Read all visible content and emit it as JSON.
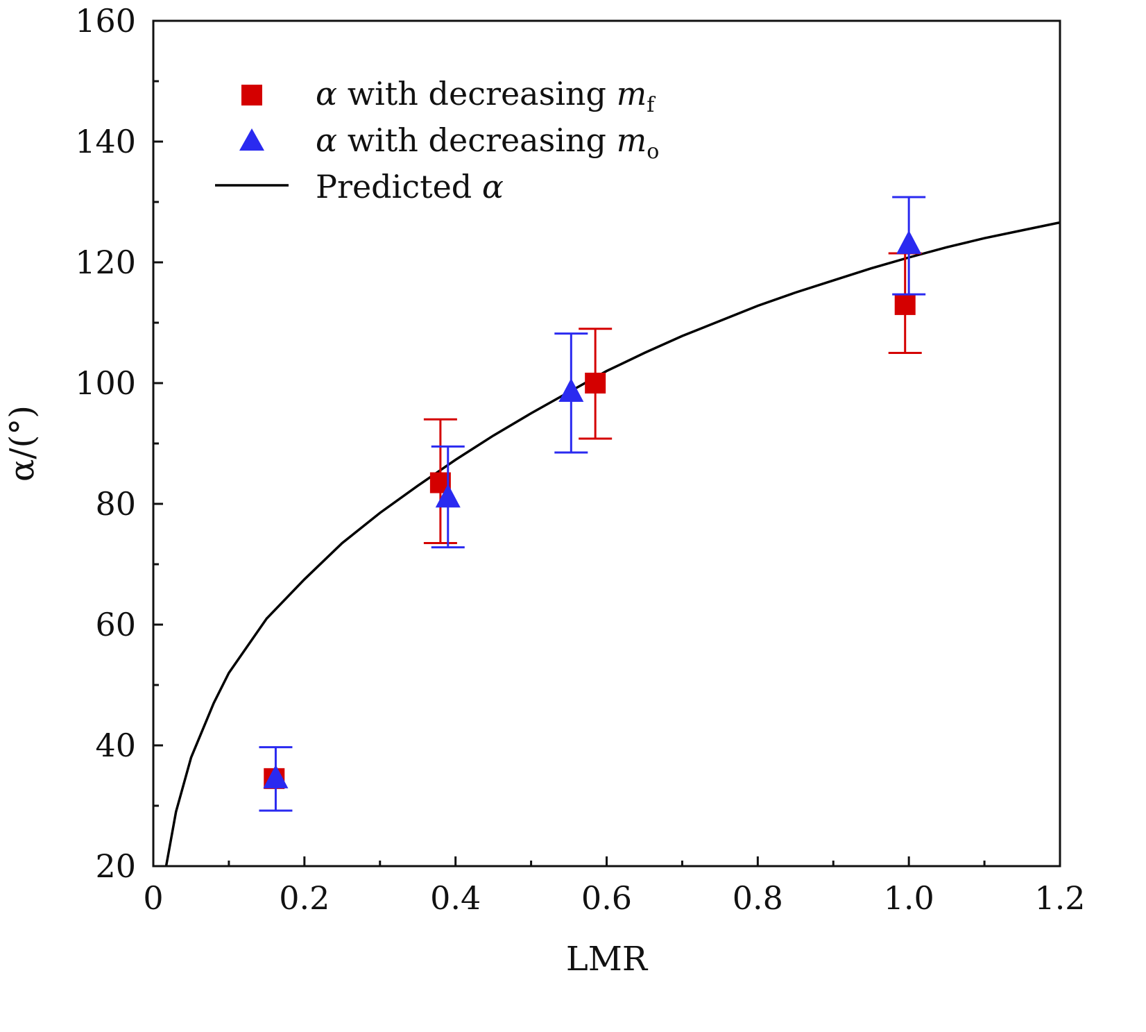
{
  "chart_data": {
    "type": "scatter",
    "title": "",
    "xlabel": "LMR",
    "ylabel": "α/(°)",
    "xlim": [
      0,
      1.2
    ],
    "ylim": [
      20,
      160
    ],
    "x_ticks": [
      0,
      0.2,
      0.4,
      0.6,
      0.8,
      1.0,
      1.2
    ],
    "x_tick_labels": [
      "0",
      "0.2",
      "0.4",
      "0.6",
      "0.8",
      "1.0",
      "1.2"
    ],
    "y_ticks": [
      20,
      40,
      60,
      80,
      100,
      120,
      140,
      160
    ],
    "y_tick_labels": [
      "20",
      "40",
      "60",
      "80",
      "100",
      "120",
      "140",
      "160"
    ],
    "legend_position": "top-left",
    "series": [
      {
        "name": "α with decreasing m_f",
        "legend_main": "α with decreasing ",
        "legend_var": "m",
        "legend_sub": "f",
        "marker": "square",
        "color": "#d40000",
        "points": [
          {
            "x": 0.16,
            "y": 34.5,
            "err_low": 34.5,
            "err_high": 34.5
          },
          {
            "x": 0.38,
            "y": 83.5,
            "err_low": 73.5,
            "err_high": 94.0
          },
          {
            "x": 0.585,
            "y": 100.0,
            "err_low": 90.8,
            "err_high": 109.0
          },
          {
            "x": 0.995,
            "y": 113.0,
            "err_low": 105.0,
            "err_high": 121.5
          }
        ]
      },
      {
        "name": "α with decreasing m_o",
        "legend_main": "α with decreasing ",
        "legend_var": "m",
        "legend_sub": "o",
        "marker": "triangle",
        "color": "#2a2af0",
        "points": [
          {
            "x": 0.162,
            "y": 34.5,
            "err_low": 29.2,
            "err_high": 39.7
          },
          {
            "x": 0.39,
            "y": 81.0,
            "err_low": 72.8,
            "err_high": 89.5
          },
          {
            "x": 0.553,
            "y": 98.5,
            "err_low": 88.5,
            "err_high": 108.2
          },
          {
            "x": 1.0,
            "y": 123.0,
            "err_low": 114.7,
            "err_high": 130.8
          }
        ]
      },
      {
        "name": "Predicted α",
        "legend_main": "Predicted ",
        "legend_var": "α",
        "marker": "line",
        "color": "#000000",
        "curve": [
          {
            "x": 0.017,
            "y": 20
          },
          {
            "x": 0.03,
            "y": 29
          },
          {
            "x": 0.05,
            "y": 38
          },
          {
            "x": 0.08,
            "y": 47
          },
          {
            "x": 0.1,
            "y": 52
          },
          {
            "x": 0.15,
            "y": 61
          },
          {
            "x": 0.2,
            "y": 67.5
          },
          {
            "x": 0.25,
            "y": 73.5
          },
          {
            "x": 0.3,
            "y": 78.5
          },
          {
            "x": 0.35,
            "y": 83
          },
          {
            "x": 0.4,
            "y": 87.3
          },
          {
            "x": 0.45,
            "y": 91.3
          },
          {
            "x": 0.5,
            "y": 95
          },
          {
            "x": 0.55,
            "y": 98.5
          },
          {
            "x": 0.6,
            "y": 102
          },
          {
            "x": 0.65,
            "y": 105
          },
          {
            "x": 0.7,
            "y": 107.8
          },
          {
            "x": 0.75,
            "y": 110.3
          },
          {
            "x": 0.8,
            "y": 112.8
          },
          {
            "x": 0.85,
            "y": 115
          },
          {
            "x": 0.9,
            "y": 117
          },
          {
            "x": 0.95,
            "y": 119
          },
          {
            "x": 1.0,
            "y": 120.8
          },
          {
            "x": 1.05,
            "y": 122.5
          },
          {
            "x": 1.1,
            "y": 124
          },
          {
            "x": 1.15,
            "y": 125.3
          },
          {
            "x": 1.2,
            "y": 126.6
          }
        ]
      }
    ]
  }
}
